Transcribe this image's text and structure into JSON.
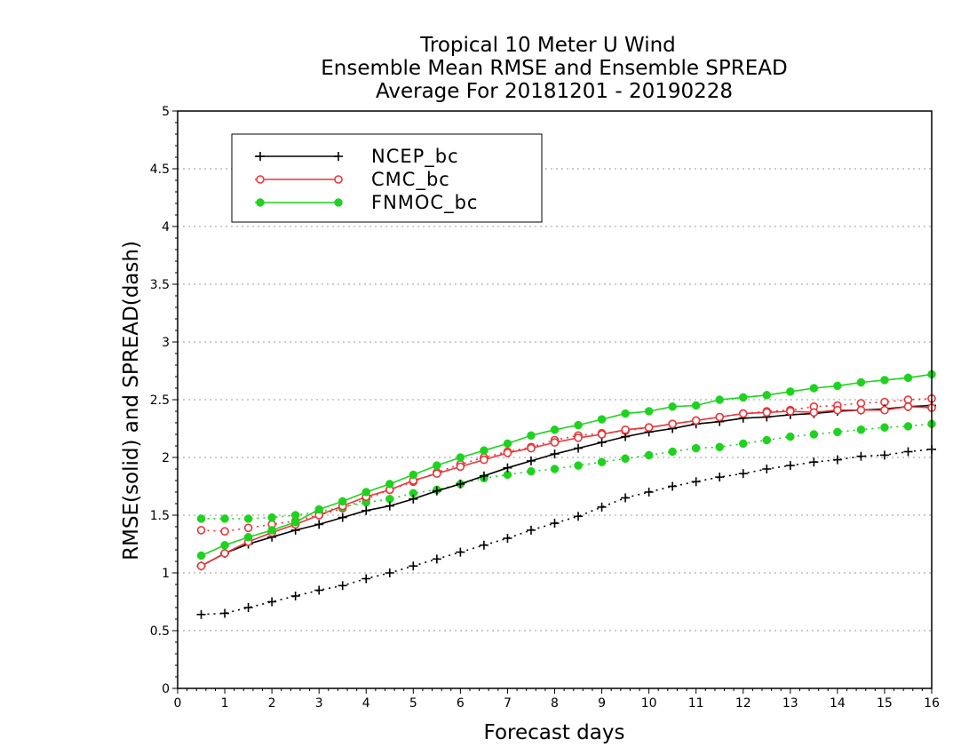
{
  "chart_data": {
    "type": "line",
    "title": [
      "Tropical 10 Meter U Wind",
      "Ensemble Mean RMSE and Ensemble SPREAD",
      "Average For 20181201 - 20190228"
    ],
    "xlabel": "Forecast days",
    "ylabel": "RMSE(solid) and SPREAD(dash)",
    "xlim": [
      0,
      16
    ],
    "ylim": [
      0,
      5
    ],
    "xticks": [
      "0",
      "1",
      "2",
      "3",
      "4",
      "5",
      "6",
      "7",
      "8",
      "9",
      "10",
      "11",
      "12",
      "13",
      "14",
      "15",
      "16"
    ],
    "yticks": [
      "0",
      "0.5",
      "1",
      "1.5",
      "2",
      "2.5",
      "3",
      "3.5",
      "4",
      "4.5",
      "5"
    ],
    "grid": "horizontal dotted",
    "legend_position": "top-left",
    "x": [
      0.5,
      1,
      1.5,
      2,
      2.5,
      3,
      3.5,
      4,
      4.5,
      5,
      5.5,
      6,
      6.5,
      7,
      7.5,
      8,
      8.5,
      9,
      9.5,
      10,
      10.5,
      11,
      11.5,
      12,
      12.5,
      13,
      13.5,
      14,
      14.5,
      15,
      15.5,
      16
    ],
    "series": [
      {
        "name": "NCEP_bc",
        "color": "#000000",
        "marker": "plus",
        "rmse": [
          1.06,
          1.17,
          1.25,
          1.31,
          1.37,
          1.42,
          1.48,
          1.54,
          1.58,
          1.64,
          1.71,
          1.77,
          1.84,
          1.91,
          1.97,
          2.03,
          2.08,
          2.13,
          2.18,
          2.22,
          2.25,
          2.29,
          2.31,
          2.34,
          2.35,
          2.37,
          2.38,
          2.4,
          2.41,
          2.42,
          2.44,
          2.45
        ],
        "spread": [
          0.64,
          0.65,
          0.7,
          0.75,
          0.8,
          0.85,
          0.89,
          0.95,
          1.0,
          1.06,
          1.12,
          1.18,
          1.24,
          1.3,
          1.37,
          1.43,
          1.49,
          1.57,
          1.65,
          1.7,
          1.75,
          1.79,
          1.83,
          1.86,
          1.9,
          1.93,
          1.96,
          1.98,
          2.01,
          2.02,
          2.05,
          2.07
        ]
      },
      {
        "name": "CMC_bc",
        "color": "#e8363a",
        "marker": "open-circle",
        "rmse": [
          1.06,
          1.17,
          1.27,
          1.35,
          1.42,
          1.5,
          1.58,
          1.66,
          1.72,
          1.8,
          1.86,
          1.92,
          1.98,
          2.04,
          2.08,
          2.13,
          2.17,
          2.2,
          2.24,
          2.26,
          2.29,
          2.32,
          2.35,
          2.38,
          2.39,
          2.4,
          2.39,
          2.41,
          2.41,
          2.41,
          2.44,
          2.43
        ],
        "spread": [
          1.37,
          1.36,
          1.39,
          1.42,
          1.45,
          1.5,
          1.56,
          1.64,
          1.72,
          1.79,
          1.87,
          1.94,
          2.0,
          2.05,
          2.09,
          2.15,
          2.19,
          2.21,
          2.23,
          2.26,
          2.29,
          2.32,
          2.35,
          2.38,
          2.4,
          2.41,
          2.44,
          2.45,
          2.47,
          2.48,
          2.5,
          2.51
        ]
      },
      {
        "name": "FNMOC_bc",
        "color": "#1ed31e",
        "marker": "filled-circle",
        "rmse": [
          1.15,
          1.24,
          1.31,
          1.37,
          1.44,
          1.55,
          1.62,
          1.7,
          1.77,
          1.85,
          1.93,
          2.0,
          2.06,
          2.12,
          2.19,
          2.24,
          2.28,
          2.33,
          2.38,
          2.4,
          2.44,
          2.45,
          2.5,
          2.52,
          2.54,
          2.57,
          2.6,
          2.62,
          2.65,
          2.67,
          2.69,
          2.72
        ],
        "spread": [
          1.47,
          1.47,
          1.47,
          1.48,
          1.5,
          1.53,
          1.57,
          1.61,
          1.64,
          1.69,
          1.72,
          1.77,
          1.82,
          1.85,
          1.88,
          1.9,
          1.93,
          1.96,
          1.99,
          2.02,
          2.05,
          2.08,
          2.09,
          2.12,
          2.15,
          2.18,
          2.2,
          2.22,
          2.24,
          2.26,
          2.27,
          2.29
        ]
      }
    ]
  }
}
